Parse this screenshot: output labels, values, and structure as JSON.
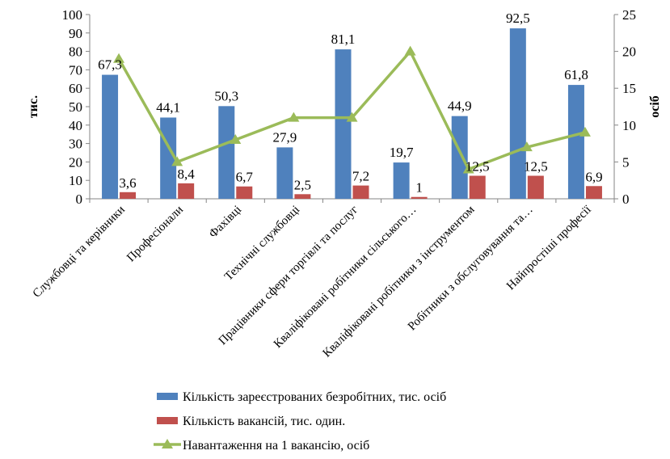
{
  "chart_data": {
    "type": "bar",
    "categories": [
      "Службовці та керівники",
      "Професіонали",
      "Фахівці",
      "Технічні службовці",
      "Працівники сфери торгівлі та послуг",
      "Кваліфіковані робітники сільського…",
      "Кваліфіковані робітники з інструментом",
      "Робітники з обслуговування та…",
      "Найпростіші професії"
    ],
    "series": [
      {
        "name": "Кількість зареєстрованих безробітних, тис. осіб",
        "type": "bar",
        "axis": "left",
        "color": "#4f81bd",
        "values": [
          67.3,
          44.1,
          50.3,
          27.9,
          81.1,
          19.7,
          44.9,
          92.5,
          61.8
        ],
        "labels": [
          "67,3",
          "44,1",
          "50,3",
          "27,9",
          "81,1",
          "19,7",
          "44,9",
          "92,5",
          "61,8"
        ]
      },
      {
        "name": "Кількість вакансій, тис. один.",
        "type": "bar",
        "axis": "left",
        "color": "#c0504d",
        "values": [
          3.6,
          8.4,
          6.7,
          2.5,
          7.2,
          1,
          12.5,
          12.5,
          6.9
        ],
        "labels": [
          "3,6",
          "8,4",
          "6,7",
          "2,5",
          "7,2",
          "1",
          "12,5",
          "12,5",
          "6,9"
        ]
      },
      {
        "name": "Навантаження на 1 вакансію, осіб",
        "type": "line",
        "axis": "right",
        "color": "#9bbb59",
        "values": [
          19,
          5,
          8,
          11,
          11,
          20,
          4,
          7,
          9
        ]
      }
    ],
    "ylabel": "тис.",
    "y2label": "осіб",
    "ylim": [
      0,
      100
    ],
    "y2lim": [
      0,
      25
    ],
    "yticks": [
      "0",
      "10",
      "20",
      "30",
      "40",
      "50",
      "60",
      "70",
      "80",
      "90",
      "100"
    ],
    "y2ticks": [
      "0",
      "5",
      "10",
      "15",
      "20",
      "25"
    ],
    "grid": false,
    "legend_position": "bottom"
  }
}
